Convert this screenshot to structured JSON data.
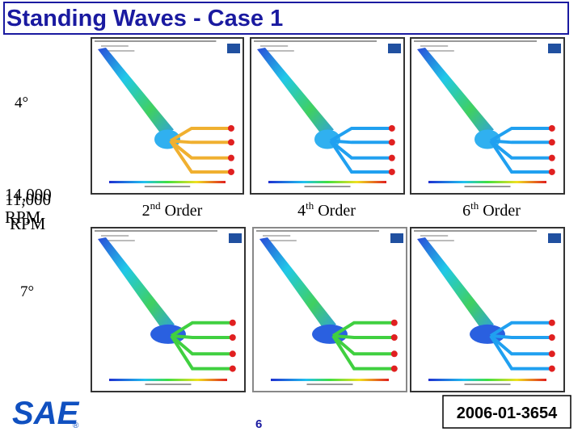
{
  "title": "Standing Waves - Case 1",
  "angles": [
    "4°",
    "7°"
  ],
  "speed_labels": [
    {
      "value": "14,000",
      "unit": "RPM"
    },
    {
      "value": "11,000",
      "unit": "RPM"
    }
  ],
  "orders": [
    {
      "number": "2",
      "suffix": "nd",
      "word": "Order"
    },
    {
      "number": "4",
      "suffix": "th",
      "word": "Order"
    },
    {
      "number": "6",
      "suffix": "th",
      "word": "Order"
    }
  ],
  "logo": "SAE",
  "page_number": "6",
  "paper_id": "2006-01-3654"
}
